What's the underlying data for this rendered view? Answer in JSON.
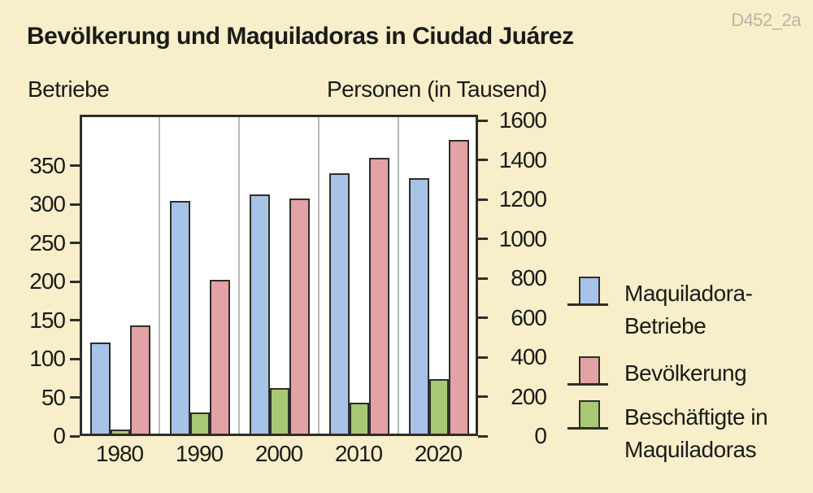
{
  "figure_id": "D452_2a",
  "title": "Bevölkerung und Maquiladoras in Ciudad Juárez",
  "chart_data": {
    "type": "bar",
    "categories": [
      "1980",
      "1990",
      "2000",
      "2010",
      "2020"
    ],
    "series": [
      {
        "name": "Maquiladora-Betriebe",
        "legend_lines": [
          "Maquiladora-",
          "Betriebe"
        ],
        "axis": "left",
        "slot": 0,
        "color": "#a8c3e8",
        "values": [
          121,
          304,
          313,
          340,
          334
        ]
      },
      {
        "name": "Bevölkerung",
        "legend_lines": [
          "Bevölkerung"
        ],
        "axis": "right",
        "slot": 2,
        "color": "#e2a2a6",
        "values": [
          560,
          790,
          1205,
          1410,
          1500
        ]
      },
      {
        "name": "Beschäftigte in Maquiladoras",
        "legend_lines": [
          "Beschäftigte in",
          "Maquiladoras"
        ],
        "axis": "right",
        "slot": 1,
        "color": "#a9c876",
        "values": [
          35,
          120,
          245,
          170,
          290
        ]
      }
    ],
    "left_axis": {
      "label": "Betriebe",
      "ticks": [
        0,
        50,
        100,
        150,
        200,
        250,
        300,
        350
      ],
      "range": [
        0,
        415
      ]
    },
    "right_axis": {
      "label": "Personen (in Tausend)",
      "ticks": [
        0,
        200,
        400,
        600,
        800,
        1000,
        1200,
        1400,
        1600
      ],
      "range": [
        0,
        1630
      ]
    },
    "legend_position": "right",
    "grid": "vertical-group-separators"
  },
  "colors": {
    "background": "#f8eeca",
    "plot_background": "#ffffff",
    "axis": "#2e2e29",
    "grid_line": "#b9b9b9",
    "text": "#1b1b18",
    "figure_id_text": "#b3b7a3"
  }
}
